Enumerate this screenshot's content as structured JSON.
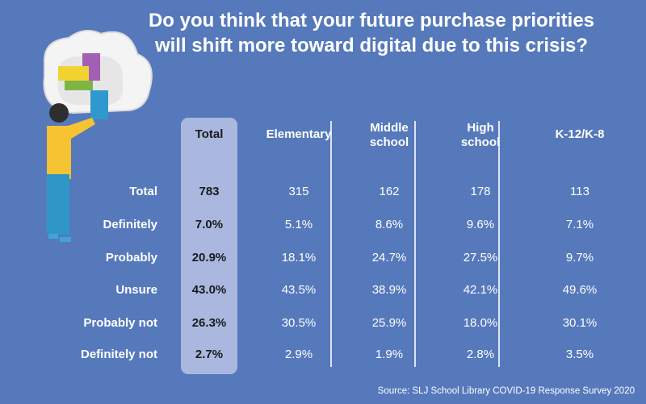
{
  "chart_data": {
    "type": "table",
    "title": "Do you think that your future purchase priorities will shift more toward digital due to this crisis?",
    "title_lines": [
      "Do you think that your future purchase priorities",
      "will shift more toward digital due to this crisis?"
    ],
    "columns": [
      {
        "lines": [
          "Total"
        ]
      },
      {
        "lines": [
          "Elementary"
        ]
      },
      {
        "lines": [
          "Middle",
          "school"
        ]
      },
      {
        "lines": [
          "High",
          "school"
        ]
      },
      {
        "lines": [
          "K-12/K-8"
        ]
      }
    ],
    "rows": [
      {
        "label": "Total",
        "values": [
          "783",
          "315",
          "162",
          "178",
          "113"
        ]
      },
      {
        "label": "Definitely",
        "values": [
          "7.0%",
          "5.1%",
          "8.6%",
          "9.6%",
          "7.1%"
        ]
      },
      {
        "label": "Probably",
        "values": [
          "20.9%",
          "18.1%",
          "24.7%",
          "27.5%",
          "9.7%"
        ]
      },
      {
        "label": "Unsure",
        "values": [
          "43.0%",
          "43.5%",
          "38.9%",
          "42.1%",
          "49.6%"
        ]
      },
      {
        "label": "Probably not",
        "values": [
          "26.3%",
          "30.5%",
          "25.9%",
          "18.0%",
          "30.1%"
        ]
      },
      {
        "label": "Definitely not",
        "values": [
          "2.7%",
          "2.9%",
          "1.9%",
          "2.8%",
          "3.5%"
        ]
      }
    ],
    "source": "Source: SLJ School Library COVID-19 Response Survey 2020"
  },
  "colors": {
    "background": "#5679bc",
    "total_column": "#aab8e0"
  }
}
